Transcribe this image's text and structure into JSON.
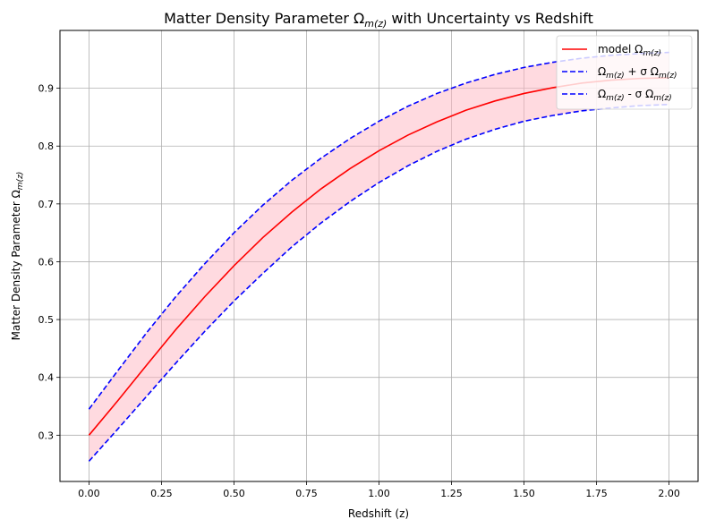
{
  "chart_data": {
    "type": "line",
    "title": "Matter Density Parameter Ω",
    "title_sub": "m(z)",
    "title_rest": " with Uncertainty vs Redshift",
    "xlabel": "Redshift (z)",
    "ylabel": "Matter Density Parameter Ω",
    "ylabel_sub": "m(z)",
    "xlim": [
      -0.1,
      2.1
    ],
    "ylim": [
      0.22,
      1.0
    ],
    "xticks": [
      0.0,
      0.25,
      0.5,
      0.75,
      1.0,
      1.25,
      1.5,
      1.75,
      2.0
    ],
    "xtick_labels": [
      "0.00",
      "0.25",
      "0.50",
      "0.75",
      "1.00",
      "1.25",
      "1.50",
      "1.75",
      "2.00"
    ],
    "yticks": [
      0.3,
      0.4,
      0.5,
      0.6,
      0.7,
      0.8,
      0.9
    ],
    "ytick_labels": [
      "0.3",
      "0.4",
      "0.5",
      "0.6",
      "0.7",
      "0.8",
      "0.9"
    ],
    "grid": true,
    "legend_position": "top-right",
    "x": [
      0.0,
      0.1,
      0.2,
      0.3,
      0.4,
      0.5,
      0.6,
      0.7,
      0.8,
      0.9,
      1.0,
      1.1,
      1.2,
      1.3,
      1.4,
      1.5,
      1.6,
      1.7,
      1.8,
      1.9,
      2.0
    ],
    "series": [
      {
        "name": "model Ω",
        "name_sub": "m(z)",
        "name_rest": "",
        "color": "#ff0000",
        "dash": "solid",
        "values": [
          0.3,
          0.36,
          0.422,
          0.483,
          0.54,
          0.593,
          0.642,
          0.686,
          0.726,
          0.761,
          0.792,
          0.819,
          0.842,
          0.862,
          0.878,
          0.891,
          0.901,
          0.909,
          0.914,
          0.917,
          0.918
        ]
      },
      {
        "name": "Ω",
        "name_sub": "m(z)",
        "name_rest": " + σ Ω",
        "name_sub2": "m(z)",
        "color": "#0000ff",
        "dash": "dashed",
        "values": [
          0.345,
          0.412,
          0.478,
          0.54,
          0.597,
          0.65,
          0.698,
          0.741,
          0.779,
          0.813,
          0.843,
          0.869,
          0.891,
          0.909,
          0.924,
          0.936,
          0.945,
          0.952,
          0.957,
          0.96,
          0.962
        ]
      },
      {
        "name": "Ω",
        "name_sub": "m(z)",
        "name_rest": " - σ Ω",
        "name_sub2": "m(z)",
        "color": "#0000ff",
        "dash": "dashed",
        "values": [
          0.255,
          0.311,
          0.368,
          0.425,
          0.48,
          0.532,
          0.58,
          0.626,
          0.667,
          0.704,
          0.737,
          0.766,
          0.791,
          0.812,
          0.829,
          0.843,
          0.853,
          0.861,
          0.866,
          0.87,
          0.872
        ]
      }
    ],
    "band": {
      "color": "#ffb6c1",
      "opacity": 0.5
    }
  }
}
